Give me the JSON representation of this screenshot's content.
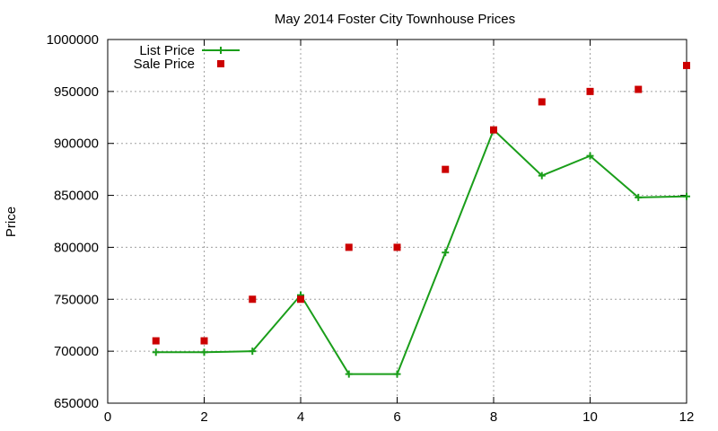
{
  "chart_data": {
    "type": "line",
    "title": "May 2014 Foster City Townhouse Prices",
    "xlabel": "",
    "ylabel": "Price",
    "xlim": [
      0,
      12
    ],
    "ylim": [
      650000,
      1000000
    ],
    "x_ticks": [
      "0",
      "2",
      "4",
      "6",
      "8",
      "10",
      "12"
    ],
    "y_ticks": [
      "650000",
      "700000",
      "750000",
      "800000",
      "850000",
      "900000",
      "950000",
      "1000000"
    ],
    "grid": true,
    "legend_position": "top-left",
    "series": [
      {
        "name": "List Price",
        "style": "line-with-plus-markers",
        "color": "#1a9e1a",
        "x": [
          1,
          2,
          3,
          4,
          5,
          6,
          7,
          8,
          9,
          10,
          11,
          12
        ],
        "values": [
          699000,
          699000,
          700000,
          754000,
          678000,
          678000,
          795000,
          913000,
          869000,
          888000,
          848000,
          849000
        ]
      },
      {
        "name": "Sale Price",
        "style": "square-markers",
        "color": "#cc0000",
        "x": [
          1,
          2,
          3,
          4,
          5,
          6,
          7,
          8,
          9,
          10,
          11,
          12
        ],
        "values": [
          710000,
          710000,
          750000,
          750000,
          800000,
          800000,
          875000,
          913000,
          940000,
          950000,
          952000,
          975000
        ]
      }
    ]
  }
}
